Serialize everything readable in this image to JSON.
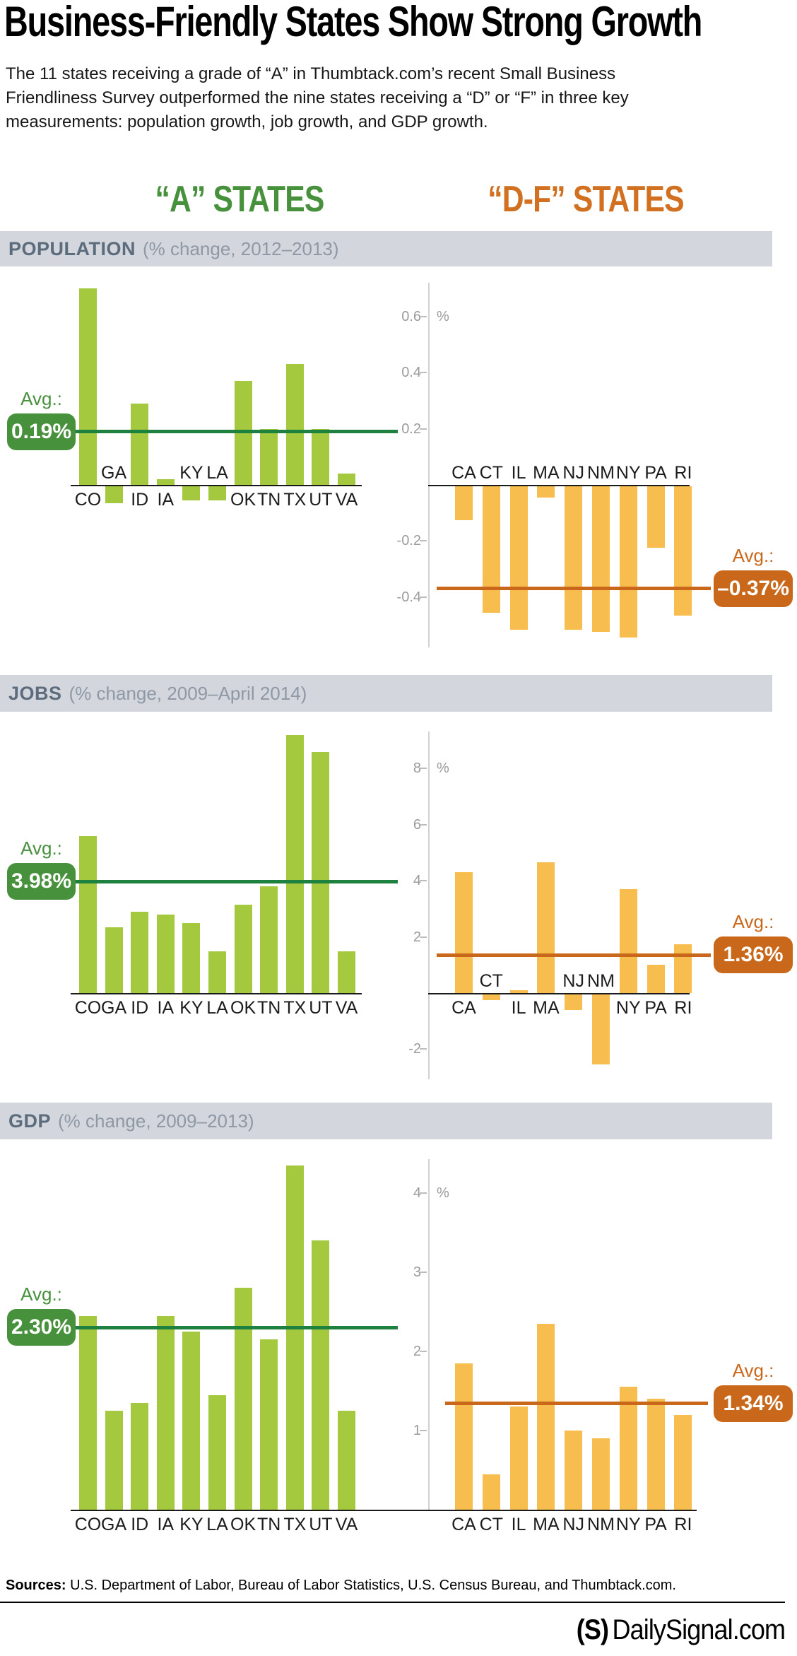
{
  "title": "Business-Friendly States Show Strong Growth",
  "intro": "The 11 states receiving a grade of “A” in Thumbtack.com’s recent Small Business\nFriendliness Survey outperformed the nine states receiving a “D” or “F” in three key\nmeasurements: population growth, job growth, and GDP growth.",
  "headers": {
    "a": "“A” STATES",
    "df": "“D-F” STATES"
  },
  "colors": {
    "green_bar": "#a5c93e",
    "green_dark": "#47913c",
    "green_line": "#1f8140",
    "orange_bar": "#f8bd4f",
    "orange_dark": "#c9681b",
    "orange_header": "#d07020",
    "band_bg": "#d3d7dd",
    "band_title": "#5c6c7c",
    "band_note": "#8f98a4",
    "tick": "#9b9b9b"
  },
  "chart_data": [
    {
      "id": "population",
      "type": "bar",
      "title": "POPULATION",
      "subtitle": "(% change, 2012–2013)",
      "unit": "%",
      "ylim": [
        -0.6,
        0.75
      ],
      "grid": false,
      "ticks": [
        {
          "value": 0.6,
          "label": "0.6"
        },
        {
          "value": 0.4,
          "label": "0.4"
        },
        {
          "value": 0.2,
          "label": "0.2"
        },
        {
          "value": -0.2,
          "label": "-0.2"
        },
        {
          "value": -0.4,
          "label": "-0.4"
        }
      ],
      "groups": [
        {
          "name": "“A” STATES",
          "categories": [
            "CO",
            "GA",
            "ID",
            "IA",
            "KY",
            "LA",
            "OK",
            "TN",
            "TX",
            "UT",
            "VA"
          ],
          "values": [
            0.7,
            -0.06,
            0.29,
            0.02,
            -0.05,
            -0.05,
            0.37,
            0.2,
            0.43,
            0.2,
            0.04
          ],
          "avg": 0.19,
          "avg_display": "0.19%",
          "avg_label": "Avg.:"
        },
        {
          "name": "“D-F” STATES",
          "categories": [
            "CA",
            "CT",
            "IL",
            "MA",
            "NJ",
            "NM",
            "NY",
            "PA",
            "RI"
          ],
          "values": [
            -0.12,
            -0.45,
            -0.51,
            -0.04,
            -0.51,
            -0.52,
            -0.54,
            -0.22,
            -0.46
          ],
          "avg": -0.37,
          "avg_display": "–0.37%",
          "avg_label": "Avg.:"
        }
      ]
    },
    {
      "id": "jobs",
      "type": "bar",
      "title": "JOBS",
      "subtitle": "(% change, 2009–April 2014)",
      "unit": "%",
      "ylim": [
        -3,
        9.5
      ],
      "grid": false,
      "ticks": [
        {
          "value": 8,
          "label": "8"
        },
        {
          "value": 6,
          "label": "6"
        },
        {
          "value": 4,
          "label": "4"
        },
        {
          "value": 2,
          "label": "2"
        },
        {
          "value": -2,
          "label": "-2"
        }
      ],
      "groups": [
        {
          "name": "“A” STATES",
          "categories": [
            "CO",
            "GA",
            "ID",
            "IA",
            "KY",
            "LA",
            "OK",
            "TN",
            "TX",
            "UT",
            "VA"
          ],
          "values": [
            5.6,
            2.35,
            2.9,
            2.8,
            2.5,
            1.5,
            3.15,
            3.8,
            9.2,
            8.6,
            1.5
          ],
          "avg": 3.98,
          "avg_display": "3.98%",
          "avg_label": "Avg.:"
        },
        {
          "name": "“D-F” STATES",
          "categories": [
            "CA",
            "CT",
            "IL",
            "MA",
            "NJ",
            "NM",
            "NY",
            "PA",
            "RI"
          ],
          "values": [
            4.3,
            -0.2,
            0.1,
            4.65,
            -0.55,
            -2.5,
            3.7,
            1.0,
            1.75
          ],
          "avg": 1.36,
          "avg_display": "1.36%",
          "avg_label": "Avg.:"
        }
      ]
    },
    {
      "id": "gdp",
      "type": "bar",
      "title": "GDP",
      "subtitle": "(% change, 2009–2013)",
      "unit": "%",
      "ylim": [
        0,
        4.5
      ],
      "grid": false,
      "ticks": [
        {
          "value": 4,
          "label": "4"
        },
        {
          "value": 3,
          "label": "3"
        },
        {
          "value": 2,
          "label": "2"
        },
        {
          "value": 1,
          "label": "1"
        }
      ],
      "groups": [
        {
          "name": "“A” STATES",
          "categories": [
            "CO",
            "GA",
            "ID",
            "IA",
            "KY",
            "LA",
            "OK",
            "TN",
            "TX",
            "UT",
            "VA"
          ],
          "values": [
            2.45,
            1.25,
            1.35,
            2.45,
            2.25,
            1.45,
            2.8,
            2.15,
            4.35,
            3.4,
            1.25
          ],
          "avg": 2.3,
          "avg_display": "2.30%",
          "avg_label": "Avg.:"
        },
        {
          "name": "“D-F” STATES",
          "categories": [
            "CA",
            "CT",
            "IL",
            "MA",
            "NJ",
            "NM",
            "NY",
            "PA",
            "RI"
          ],
          "values": [
            1.85,
            0.45,
            1.3,
            2.35,
            1.0,
            0.9,
            1.55,
            1.4,
            1.2
          ],
          "avg": 1.34,
          "avg_display": "1.34%",
          "avg_label": "Avg.:"
        }
      ]
    }
  ],
  "footer": {
    "sources_label": "Sources:",
    "sources_text": " U.S. Department of Labor, Bureau of Labor Statistics, U.S. Census Bureau, and Thumbtack.com.",
    "logo_s": "(S)",
    "logo_text": "DailySignal.com"
  }
}
